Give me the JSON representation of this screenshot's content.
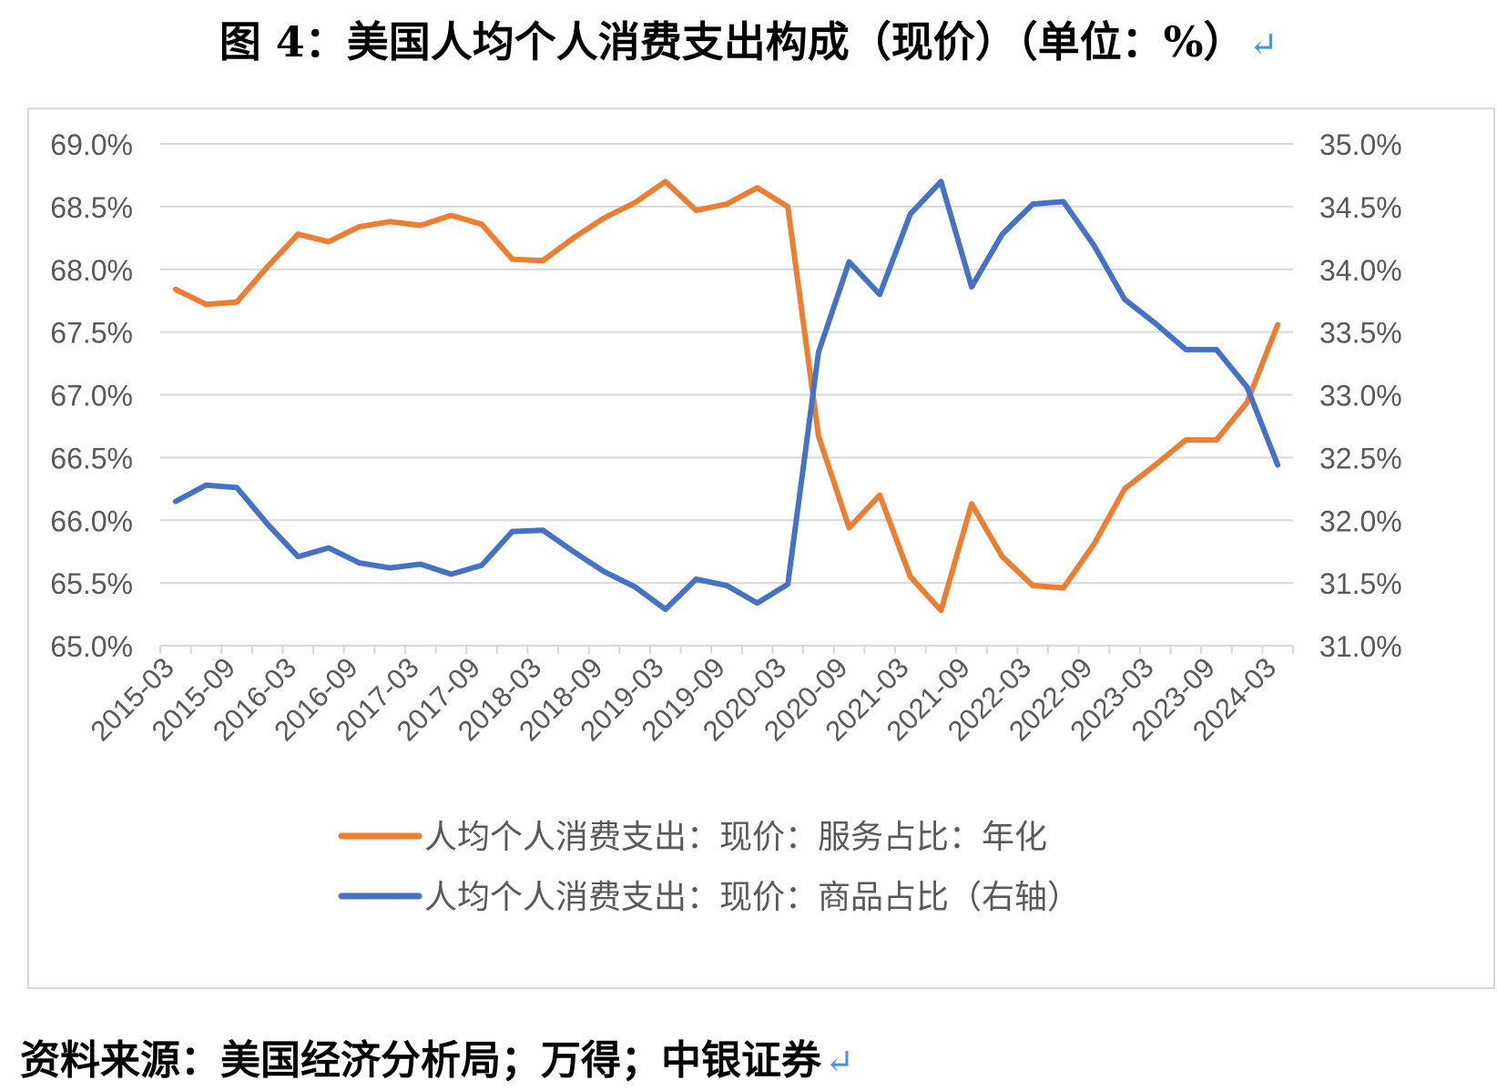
{
  "figure": {
    "title": "图 4：美国人均个人消费支出构成（现价）（单位：%）",
    "return_mark": "↵"
  },
  "source": {
    "text": "资料来源：美国经济分析局；万得；中银证券",
    "return_mark": "↵"
  },
  "colors": {
    "services": "#ed7d31",
    "goods": "#4472c4",
    "grid": "#d9d9d9",
    "axis_text": "#595959"
  },
  "chart_data": {
    "type": "line",
    "x": [
      "2015-03",
      "2015-06",
      "2015-09",
      "2015-12",
      "2016-03",
      "2016-06",
      "2016-09",
      "2016-12",
      "2017-03",
      "2017-06",
      "2017-09",
      "2017-12",
      "2018-03",
      "2018-06",
      "2018-09",
      "2018-12",
      "2019-03",
      "2019-06",
      "2019-09",
      "2019-12",
      "2020-03",
      "2020-06",
      "2020-09",
      "2020-12",
      "2021-03",
      "2021-06",
      "2021-09",
      "2021-12",
      "2022-03",
      "2022-06",
      "2022-09",
      "2022-12",
      "2023-03",
      "2023-06",
      "2023-09",
      "2023-12",
      "2024-03"
    ],
    "x_tick_labels": [
      "2015-03",
      "2015-09",
      "2016-03",
      "2016-09",
      "2017-03",
      "2017-09",
      "2018-03",
      "2018-09",
      "2019-03",
      "2019-09",
      "2020-03",
      "2020-09",
      "2021-03",
      "2021-09",
      "2022-03",
      "2022-09",
      "2023-03",
      "2023-09",
      "2024-03"
    ],
    "y_left": {
      "min": 65.0,
      "max": 69.0,
      "ticks": [
        "65.0%",
        "65.5%",
        "66.0%",
        "66.5%",
        "67.0%",
        "67.5%",
        "68.0%",
        "68.5%",
        "69.0%"
      ]
    },
    "y_right": {
      "min": 31.0,
      "max": 35.0,
      "ticks": [
        "31.0%",
        "31.5%",
        "32.0%",
        "32.5%",
        "33.0%",
        "33.5%",
        "34.0%",
        "34.5%",
        "35.0%"
      ]
    },
    "grid": true,
    "legend_position": "bottom",
    "series": [
      {
        "name": "人均个人消费支出：现价：服务占比：年化",
        "axis": "left",
        "color": "#ed7d31",
        "values": [
          67.84,
          67.72,
          67.74,
          68.02,
          68.28,
          68.22,
          68.34,
          68.38,
          68.35,
          68.43,
          68.36,
          68.08,
          68.07,
          68.25,
          68.41,
          68.53,
          68.7,
          68.47,
          68.52,
          68.65,
          68.5,
          66.67,
          65.94,
          66.2,
          65.55,
          65.28,
          66.13,
          65.71,
          65.48,
          65.46,
          65.81,
          66.25,
          66.44,
          66.64,
          66.64,
          66.94,
          67.56
        ]
      },
      {
        "name": "人均个人消费支出：现价：商品占比（右轴）",
        "axis": "right",
        "color": "#4472c4",
        "values": [
          32.15,
          32.28,
          32.26,
          31.97,
          31.71,
          31.78,
          31.66,
          31.62,
          31.65,
          31.57,
          31.64,
          31.91,
          31.92,
          31.75,
          31.59,
          31.47,
          31.29,
          31.53,
          31.48,
          31.34,
          31.49,
          33.34,
          34.06,
          33.8,
          34.44,
          34.7,
          33.86,
          34.28,
          34.52,
          34.54,
          34.19,
          33.76,
          33.57,
          33.36,
          33.36,
          33.06,
          32.44
        ]
      }
    ]
  }
}
